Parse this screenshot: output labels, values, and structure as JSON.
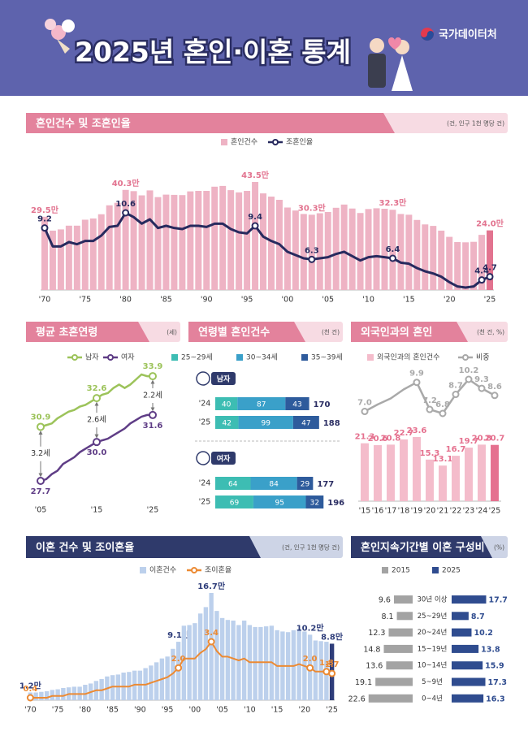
{
  "header": {
    "title": "2025년 혼인·이혼 통계",
    "org": "국가데이터처"
  },
  "chart_data": [
    {
      "type": "bar-line",
      "title": "혼인건수 및 조혼인율",
      "unit": "(건, 인구 1천 명당 건)",
      "categories": [
        "'70",
        null,
        null,
        null,
        null,
        "'75",
        null,
        null,
        null,
        null,
        "'80",
        null,
        null,
        null,
        null,
        "'85",
        null,
        null,
        null,
        null,
        "'90",
        null,
        null,
        null,
        null,
        "'95",
        null,
        null,
        null,
        null,
        "'00",
        null,
        null,
        null,
        null,
        "'05",
        null,
        null,
        null,
        null,
        "'10",
        null,
        null,
        null,
        null,
        "'15",
        null,
        null,
        null,
        null,
        "'20",
        null,
        null,
        null,
        null,
        "'25"
      ],
      "series": [
        {
          "name": "혼인건수",
          "type": "bar",
          "color": "#eeb3c4",
          "highlight_color": "#e2738f",
          "values": [
            29.5,
            23.9,
            24.4,
            25.9,
            25.9,
            28.3,
            28.8,
            30.5,
            34.1,
            35.1,
            40.3,
            39.8,
            38.1,
            40.1,
            37.4,
            38.4,
            38.3,
            38.2,
            39.7,
            39.9,
            39.9,
            41.6,
            41.9,
            40.2,
            39.3,
            39.9,
            43.5,
            38.9,
            37.6,
            36.3,
            33.2,
            32.0,
            30.6,
            30.3,
            30.9,
            31.4,
            33.1,
            34.4,
            32.8,
            31.0,
            32.6,
            32.9,
            32.7,
            32.3,
            30.6,
            30.3,
            28.2,
            26.4,
            25.8,
            23.9,
            21.4,
            19.3,
            19.2,
            19.4,
            22.2,
            24.0
          ],
          "value_labels": [
            "29.5만",
            null,
            null,
            null,
            null,
            null,
            null,
            null,
            null,
            null,
            "40.3만",
            null,
            null,
            null,
            null,
            null,
            null,
            null,
            null,
            null,
            null,
            null,
            null,
            null,
            null,
            null,
            "43.5만",
            null,
            null,
            null,
            null,
            null,
            null,
            "30.3만",
            null,
            null,
            null,
            null,
            null,
            null,
            null,
            null,
            null,
            "32.3만",
            null,
            null,
            null,
            null,
            null,
            null,
            null,
            null,
            null,
            null,
            null,
            "24.0만"
          ]
        },
        {
          "name": "조혼인율",
          "type": "line",
          "color": "#272a5e",
          "values": [
            9.2,
            7.5,
            7.5,
            7.9,
            7.7,
            8.0,
            8.0,
            8.5,
            9.3,
            9.4,
            10.6,
            10.2,
            9.6,
            10.0,
            9.2,
            9.4,
            9.2,
            9.1,
            9.4,
            9.4,
            9.3,
            9.6,
            9.6,
            9.1,
            8.8,
            8.7,
            9.4,
            8.4,
            8.0,
            7.7,
            7.0,
            6.7,
            6.4,
            6.3,
            6.4,
            6.5,
            6.8,
            7.0,
            6.6,
            6.2,
            6.5,
            6.6,
            6.5,
            6.4,
            6.0,
            5.9,
            5.5,
            5.2,
            5.0,
            4.7,
            4.2,
            3.8,
            3.7,
            3.8,
            4.4,
            4.7
          ],
          "value_labels": [
            "9.2",
            null,
            null,
            null,
            null,
            null,
            null,
            null,
            null,
            null,
            "10.6",
            null,
            null,
            null,
            null,
            null,
            null,
            null,
            null,
            null,
            null,
            null,
            null,
            null,
            null,
            null,
            "9.4",
            null,
            null,
            null,
            null,
            null,
            null,
            "6.3",
            null,
            null,
            null,
            null,
            null,
            null,
            null,
            null,
            null,
            "6.4",
            null,
            null,
            null,
            null,
            null,
            null,
            null,
            null,
            null,
            null,
            "4.4",
            "4.7"
          ]
        }
      ]
    },
    {
      "type": "line",
      "title": "평균 초혼연령",
      "unit": "(세)",
      "categories": [
        "'05",
        null,
        null,
        null,
        null,
        null,
        null,
        null,
        null,
        null,
        "'15",
        null,
        null,
        null,
        null,
        null,
        null,
        null,
        null,
        null,
        "'25"
      ],
      "series": [
        {
          "name": "남자",
          "color": "#9cc35a",
          "values": [
            30.9,
            31.0,
            31.1,
            31.4,
            31.6,
            31.8,
            31.9,
            32.1,
            32.2,
            32.4,
            32.6,
            32.8,
            32.9,
            33.2,
            33.4,
            33.2,
            33.4,
            33.7,
            34.0,
            33.9,
            33.9
          ],
          "value_labels": [
            "30.9",
            null,
            null,
            null,
            null,
            null,
            null,
            null,
            null,
            null,
            "32.6",
            null,
            null,
            null,
            null,
            null,
            null,
            null,
            null,
            null,
            "33.9"
          ]
        },
        {
          "name": "여자",
          "color": "#5f3d86",
          "values": [
            27.7,
            27.8,
            28.1,
            28.3,
            28.7,
            28.9,
            29.1,
            29.4,
            29.6,
            29.8,
            30.0,
            30.1,
            30.2,
            30.4,
            30.6,
            30.8,
            31.1,
            31.3,
            31.5,
            31.6,
            31.6
          ],
          "value_labels": [
            "27.7",
            null,
            null,
            null,
            null,
            null,
            null,
            null,
            null,
            null,
            "30.0",
            null,
            null,
            null,
            null,
            null,
            null,
            null,
            null,
            null,
            "31.6"
          ]
        }
      ],
      "gap_labels": [
        "3.2세",
        "2.6세",
        "2.2세"
      ]
    },
    {
      "type": "stacked-bar",
      "title": "연령별 혼인건수",
      "unit": "(천 건)",
      "panels": [
        {
          "label": "남자",
          "categories": [
            "'24",
            "'25"
          ],
          "totals": [
            170,
            188
          ]
        },
        {
          "label": "여자",
          "categories": [
            "'24",
            "'25"
          ],
          "totals": [
            177,
            196
          ]
        }
      ],
      "series": [
        {
          "name": "25~29세",
          "color": "#3dbdb3",
          "values": [
            [
              40,
              42
            ],
            [
              64,
              69
            ]
          ]
        },
        {
          "name": "30~34세",
          "color": "#3aa0c9",
          "values": [
            [
              87,
              99
            ],
            [
              84,
              95
            ]
          ]
        },
        {
          "name": "35~39세",
          "color": "#2e5b9c",
          "values": [
            [
              43,
              47
            ],
            [
              29,
              32
            ]
          ]
        }
      ]
    },
    {
      "type": "bar-line",
      "title": "외국인과의 혼인",
      "unit": "(천 건, %)",
      "categories": [
        "'15",
        "'16",
        "'17",
        "'18",
        "'19",
        "'20",
        "'21",
        "'22",
        "'23",
        "'24",
        "'25"
      ],
      "series": [
        {
          "name": "외국인과의 혼인건수",
          "type": "bar",
          "color": "#f4bccb",
          "highlight_color": "#e5718f",
          "values": [
            21.3,
            20.6,
            20.8,
            22.7,
            23.6,
            15.3,
            13.1,
            16.7,
            19.7,
            20.8,
            20.7
          ]
        },
        {
          "name": "비중",
          "type": "line",
          "color": "#a9a9a9",
          "values": [
            7.0,
            7.7,
            8.3,
            9.2,
            9.9,
            7.2,
            6.8,
            8.7,
            10.2,
            9.3,
            8.6
          ],
          "value_labels": [
            "7.0",
            null,
            null,
            null,
            "9.9",
            "7.2",
            "6.8",
            "8.7",
            "10.2",
            "9.3",
            "8.6"
          ]
        }
      ]
    },
    {
      "type": "bar-line",
      "title": "이혼 건수 및 조이혼율",
      "unit": "(건, 인구 1천 명당 건)",
      "categories": [
        "'70",
        null,
        null,
        null,
        null,
        "'75",
        null,
        null,
        null,
        null,
        "'80",
        null,
        null,
        null,
        null,
        "'85",
        null,
        null,
        null,
        null,
        "'90",
        null,
        null,
        null,
        null,
        "'95",
        null,
        null,
        null,
        null,
        "'00",
        null,
        null,
        null,
        null,
        "'05",
        null,
        null,
        null,
        null,
        "'10",
        null,
        null,
        null,
        null,
        "'15",
        null,
        null,
        null,
        null,
        "'20",
        null,
        null,
        null,
        null,
        "'25"
      ],
      "series": [
        {
          "name": "이혼건수",
          "type": "bar",
          "color": "#bcd0ec",
          "highlight_color": "#2e3d7a",
          "values": [
            1.2,
            1.2,
            1.3,
            1.4,
            1.6,
            1.7,
            1.9,
            2.0,
            2.1,
            2.1,
            2.4,
            2.6,
            3.0,
            3.3,
            3.7,
            3.9,
            4.0,
            4.3,
            4.4,
            4.6,
            4.6,
            5.0,
            5.4,
            5.9,
            6.5,
            6.8,
            8.0,
            9.1,
            11.6,
            11.7,
            12.0,
            13.5,
            14.5,
            16.7,
            13.9,
            12.8,
            12.5,
            12.4,
            11.7,
            12.4,
            11.7,
            11.4,
            11.4,
            11.5,
            11.6,
            10.9,
            10.7,
            10.6,
            10.9,
            11.1,
            10.7,
            10.2,
            9.3,
            9.2,
            9.1,
            8.8
          ],
          "value_labels": [
            "1.2만",
            null,
            null,
            null,
            null,
            null,
            null,
            null,
            null,
            null,
            null,
            null,
            null,
            null,
            null,
            null,
            null,
            null,
            null,
            null,
            null,
            null,
            null,
            null,
            null,
            null,
            null,
            "9.1만",
            null,
            null,
            null,
            null,
            null,
            "16.7만",
            null,
            null,
            null,
            null,
            null,
            null,
            null,
            null,
            null,
            null,
            null,
            null,
            null,
            null,
            null,
            null,
            null,
            "10.2만",
            null,
            null,
            null,
            "8.8만"
          ]
        },
        {
          "name": "조이혼율",
          "type": "line",
          "color": "#ec8a33",
          "values": [
            0.4,
            0.4,
            0.4,
            0.4,
            0.5,
            0.5,
            0.5,
            0.6,
            0.6,
            0.6,
            0.6,
            0.7,
            0.8,
            0.8,
            0.9,
            1.0,
            1.0,
            1.0,
            1.0,
            1.1,
            1.1,
            1.1,
            1.2,
            1.3,
            1.4,
            1.5,
            1.7,
            2.0,
            2.5,
            2.5,
            2.5,
            2.8,
            3.0,
            3.4,
            2.9,
            2.6,
            2.6,
            2.5,
            2.4,
            2.5,
            2.3,
            2.3,
            2.3,
            2.3,
            2.3,
            2.1,
            2.1,
            2.1,
            2.1,
            2.2,
            2.1,
            2.0,
            1.8,
            1.8,
            1.8,
            1.7
          ],
          "value_labels": [
            "0.4",
            null,
            null,
            null,
            null,
            null,
            null,
            null,
            null,
            null,
            null,
            null,
            null,
            null,
            null,
            null,
            null,
            null,
            null,
            null,
            null,
            null,
            null,
            null,
            null,
            null,
            null,
            "2.0",
            null,
            null,
            null,
            null,
            null,
            "3.4",
            null,
            null,
            null,
            null,
            null,
            null,
            null,
            null,
            null,
            null,
            null,
            null,
            null,
            null,
            null,
            null,
            null,
            "2.0",
            null,
            null,
            "1.8",
            "1.7"
          ]
        }
      ]
    },
    {
      "type": "butterfly",
      "title": "혼인지속기간별 이혼 구성비",
      "unit": "(%)",
      "categories": [
        "30년 이상",
        "25~29년",
        "20~24년",
        "15~19년",
        "10~14년",
        "5~9년",
        "0~4년"
      ],
      "series": [
        {
          "name": "2015",
          "color": "#a3a3a3",
          "values": [
            9.6,
            8.1,
            12.3,
            14.8,
            13.6,
            19.1,
            22.6
          ]
        },
        {
          "name": "2025",
          "color": "#2f4c8f",
          "values": [
            17.7,
            8.7,
            10.2,
            13.8,
            15.9,
            17.3,
            16.3
          ]
        }
      ]
    }
  ]
}
